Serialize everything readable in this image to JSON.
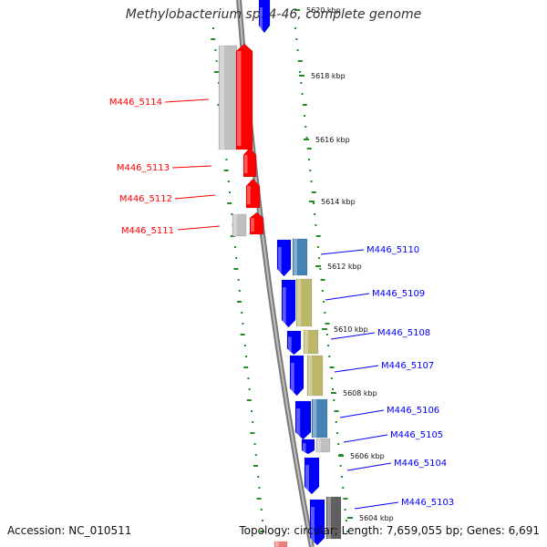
{
  "title": "Methylobacterium sp. 4-46, complete genome",
  "footer": {
    "accession": "Accession: NC_010511",
    "topology": "Topology: circular; Length: 7,659,055 bp; Genes: 6,691"
  },
  "colors": {
    "reverse_strand": "#ff0000",
    "forward_strand": "#0000ff",
    "backbone": "#888888",
    "gc_ticks": "#228b22",
    "grey_block": "#c0c0c0",
    "steel_block": "#4682b4",
    "khaki_block": "#bdb76b",
    "dark_block": "#606060"
  },
  "scale_labels": [
    "5620 kbp",
    "5618 kbp",
    "5616 kbp",
    "5614 kbp",
    "5612 kbp",
    "5610 kbp",
    "5608 kbp",
    "5606 kbp",
    "5604 kbp"
  ],
  "genes_left": [
    {
      "label": "M446_5114"
    },
    {
      "label": "M446_5113"
    },
    {
      "label": "M446_5112"
    },
    {
      "label": "M446_5111"
    }
  ],
  "genes_right": [
    {
      "label": "M446_5110"
    },
    {
      "label": "M446_5109"
    },
    {
      "label": "M446_5108"
    },
    {
      "label": "M446_5107"
    },
    {
      "label": "M446_5106"
    },
    {
      "label": "M446_5105"
    },
    {
      "label": "M446_5104"
    },
    {
      "label": "M446_5103"
    }
  ]
}
